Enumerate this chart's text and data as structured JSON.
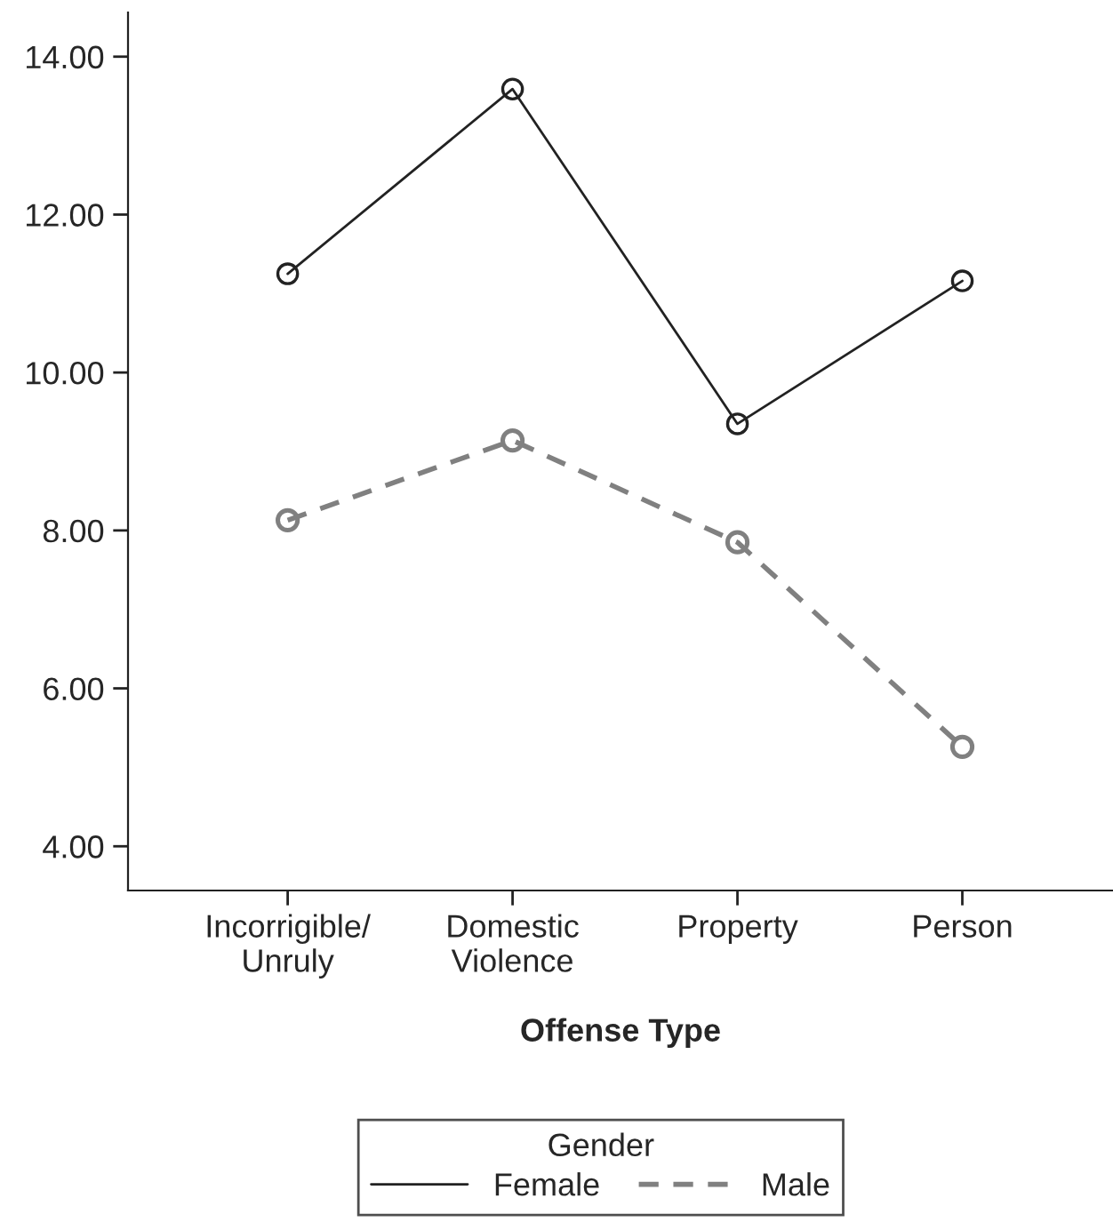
{
  "chart_data": {
    "type": "line",
    "xlabel": "Offense Type",
    "legend_title": "Gender",
    "legend": "bottom",
    "categories": [
      "Incorrigible/\nUnruly",
      "Domestic\nViolence",
      "Property",
      "Person"
    ],
    "series": [
      {
        "name": "Female",
        "color": "#222222",
        "line_style": "solid",
        "values": [
          11.25,
          13.59,
          9.35,
          11.16
        ]
      },
      {
        "name": "Male",
        "color": "#808080",
        "line_style": "dashed",
        "values": [
          8.13,
          9.14,
          7.85,
          5.26
        ]
      }
    ],
    "ylim": [
      3.44,
      14.56
    ],
    "yticks": [
      {
        "value": 4,
        "label": "4.00"
      },
      {
        "value": 6,
        "label": "6.00"
      },
      {
        "value": 8,
        "label": "8.00"
      },
      {
        "value": 10,
        "label": "10.00"
      },
      {
        "value": 12,
        "label": "12.00"
      },
      {
        "value": 14,
        "label": "14.00"
      }
    ],
    "marker": "circle",
    "grid": false
  }
}
